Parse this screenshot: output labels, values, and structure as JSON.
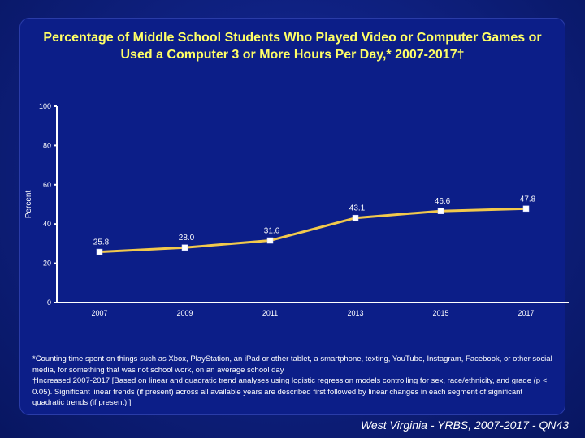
{
  "slide": {
    "title": "Percentage of Middle School Students Who Played Video or Computer Games or Used a Computer 3 or More Hours Per Day,* 2007-2017†",
    "footnote_1": "*Counting time spent on things such as Xbox, PlayStation, an iPad or other tablet, a smartphone, texting, YouTube, Instagram, Facebook, or other social media, for something that was not school work, on an average school day",
    "footnote_2": "†Increased 2007-2017 [Based on linear and quadratic trend analyses using logistic regression models controlling for sex, race/ethnicity, and grade (p < 0.05). Significant linear trends (if present) across all available years are described first followed by linear changes in each segment of significant quadratic trends (if present).]",
    "source": "West Virginia - YRBS, 2007-2017 - QN43"
  },
  "colors": {
    "background": "#0c1e88",
    "title": "#ffff66",
    "line": "#f2c94c",
    "marker": "#ffffff",
    "axis": "#ffffff",
    "text": "#ffffff"
  },
  "chart_data": {
    "type": "line",
    "title": "Percentage of Middle School Students Who Played Video or Computer Games or Used a Computer 3 or More Hours Per Day,* 2007-2017†",
    "xlabel": "",
    "ylabel": "Percent",
    "ylim": [
      0,
      100
    ],
    "yticks": [
      "0",
      "20",
      "40",
      "60",
      "80",
      "100"
    ],
    "categories": [
      "2007",
      "2009",
      "2011",
      "2013",
      "2015",
      "2017"
    ],
    "series": [
      {
        "values": [
          25.8,
          28.0,
          31.6,
          43.1,
          46.6,
          47.8
        ],
        "labels": [
          "25.8",
          "28.0",
          "31.6",
          "43.1",
          "46.6",
          "47.8"
        ]
      }
    ],
    "grid": false,
    "legend": "none"
  }
}
